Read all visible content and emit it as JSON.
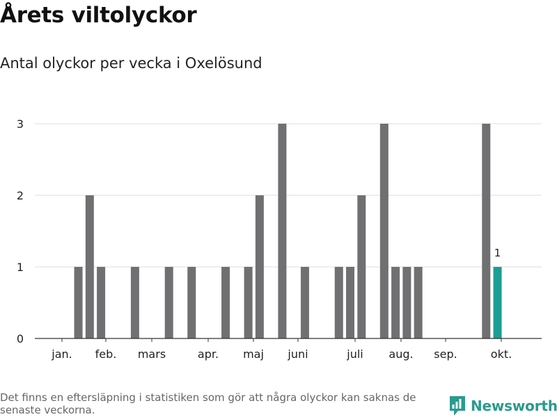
{
  "title": "Årets viltolyckor",
  "subtitle": "Antal olyckor per vecka i Oxelösund",
  "footnote": "Det finns en eftersläpning i statistiken som gör att några olyckor kan saknas de senaste veckorna.",
  "brand": {
    "name": "Newsworthy",
    "icon": "newsworthy-logo-icon"
  },
  "colors": {
    "bar": "#707072",
    "highlight": "#1a9e96",
    "grid": "#dddddd",
    "axis": "#333333"
  },
  "chart_data": {
    "type": "bar",
    "x_unit": "week",
    "weeks": [
      5,
      6,
      7,
      10,
      13,
      15,
      18,
      20,
      21,
      23,
      25,
      28,
      29,
      30,
      32,
      33,
      34,
      35,
      41,
      42
    ],
    "values": [
      1,
      2,
      1,
      1,
      1,
      1,
      1,
      1,
      2,
      3,
      1,
      1,
      1,
      2,
      3,
      1,
      1,
      1,
      3,
      1
    ],
    "highlight_index": 19,
    "data_labels": [
      {
        "index": 19,
        "text": "1"
      }
    ],
    "y_ticks": [
      0,
      1,
      2,
      3
    ],
    "ylim": [
      0,
      3
    ],
    "month_ticks": [
      "jan.",
      "feb.",
      "mars",
      "apr.",
      "maj",
      "juni",
      "juli",
      "aug.",
      "sep.",
      "okt."
    ],
    "grid": true
  }
}
